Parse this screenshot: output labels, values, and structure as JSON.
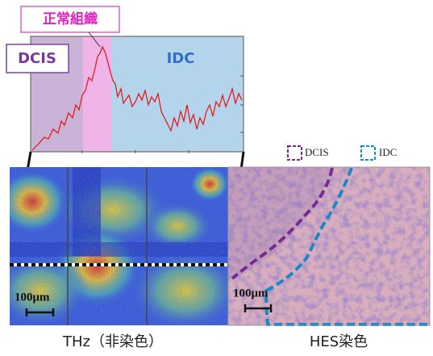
{
  "callout": "正常組織",
  "regions": {
    "dcis": "DCIS",
    "idc": "IDC"
  },
  "legend": [
    "DCIS",
    "IDC"
  ],
  "scale_bars": [
    "100μm",
    "100μm"
  ],
  "captions": [
    "THz（非染色）",
    "HES染色"
  ]
}
